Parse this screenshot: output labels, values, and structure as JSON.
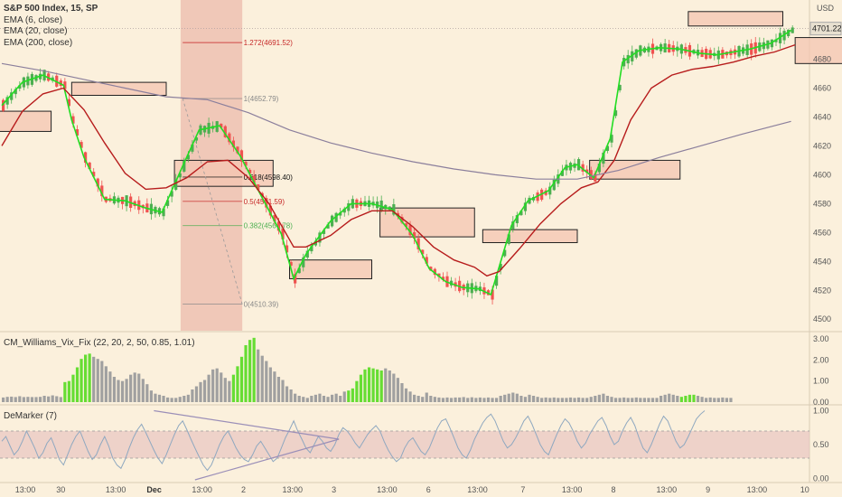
{
  "header": {
    "symbol": "S&P 500 Index, 15, SP",
    "indicators": [
      "EMA (6, close)",
      "EMA (20, close)",
      "EMA (200, close)"
    ],
    "currency": "USD"
  },
  "colors": {
    "background": "#fbf0dc",
    "up_candle": "#4caf50",
    "down_candle": "#ef5350",
    "ema6": "#22dd22",
    "ema20": "#b71c1c",
    "ema200": "#8b7f9c",
    "zone_fill": "#f4c6b2",
    "vix_green": "#66dd33",
    "vix_gray": "#a0a0a0",
    "demarker_line": "#8fa8c0",
    "demarker_band": "#e8c4c0",
    "divergence": "#9b8fb8",
    "fib_red": "#c62828",
    "fib_gray": "#888888",
    "fib_green": "#4caf50"
  },
  "chart_data": [
    {
      "type": "candlestick",
      "title": "S&P 500 Index, 15, SP",
      "ylabel": "USD",
      "ylim": [
        4492,
        4716
      ],
      "yticks": [
        4500,
        4520,
        4540,
        4560,
        4580,
        4600,
        4620,
        4640,
        4660,
        4680
      ],
      "last_price": "4701.22",
      "x_ticks": [
        "13:00",
        "30",
        "13:00",
        "Dec",
        "13:00",
        "2",
        "13:00",
        "3",
        "13:00",
        "6",
        "13:00",
        "7",
        "13:00",
        "8",
        "13:00",
        "9",
        "13:00",
        "10"
      ],
      "fib_levels": [
        {
          "label": "1.272(4691.52)",
          "value": 4691.52,
          "color": "red"
        },
        {
          "label": "1(4652.79)",
          "value": 4652.79,
          "color": "gray"
        },
        {
          "label": "0.618(4598.40)",
          "value": 4598.4,
          "color": "black"
        },
        {
          "label": "0.5(4581.59)",
          "value": 4581.59,
          "color": "red"
        },
        {
          "label": "0.382(4564.78)",
          "value": 4564.78,
          "color": "green"
        },
        {
          "label": "0(4510.39)",
          "value": 4510.39,
          "color": "gray"
        }
      ],
      "series": [
        {
          "name": "EMA (6, close)",
          "points": [
            [
              0,
              4648
            ],
            [
              5,
              4664
            ],
            [
              10,
              4669
            ],
            [
              15,
              4662
            ],
            [
              17,
              4638
            ],
            [
              20,
              4612
            ],
            [
              25,
              4583
            ],
            [
              30,
              4582
            ],
            [
              35,
              4577
            ],
            [
              39,
              4574
            ],
            [
              44,
              4606
            ],
            [
              48,
              4631
            ],
            [
              53,
              4634
            ],
            [
              58,
              4613
            ],
            [
              63,
              4586
            ],
            [
              68,
              4559
            ],
            [
              71,
              4528
            ],
            [
              74,
              4545
            ],
            [
              80,
              4568
            ],
            [
              85,
              4580
            ],
            [
              90,
              4580
            ],
            [
              95,
              4576
            ],
            [
              100,
              4558
            ],
            [
              104,
              4535
            ],
            [
              108,
              4526
            ],
            [
              112,
              4522
            ],
            [
              116,
              4521
            ],
            [
              119,
              4517
            ],
            [
              124,
              4565
            ],
            [
              128,
              4582
            ],
            [
              133,
              4589
            ],
            [
              137,
              4605
            ],
            [
              140,
              4607
            ],
            [
              144,
              4598
            ],
            [
              148,
              4625
            ],
            [
              151,
              4678
            ],
            [
              155,
              4686
            ],
            [
              160,
              4688
            ],
            [
              165,
              4687
            ],
            [
              170,
              4684
            ],
            [
              174,
              4683
            ],
            [
              178,
              4685
            ],
            [
              182,
              4687
            ],
            [
              187,
              4691
            ],
            [
              192,
              4700
            ]
          ]
        },
        {
          "name": "EMA (20, close)",
          "points": [
            [
              0,
              4620
            ],
            [
              5,
              4644
            ],
            [
              10,
              4656
            ],
            [
              15,
              4660
            ],
            [
              20,
              4645
            ],
            [
              25,
              4622
            ],
            [
              30,
              4601
            ],
            [
              35,
              4590
            ],
            [
              40,
              4591
            ],
            [
              45,
              4598
            ],
            [
              50,
              4609
            ],
            [
              55,
              4610
            ],
            [
              60,
              4598
            ],
            [
              65,
              4580
            ],
            [
              68,
              4565
            ],
            [
              71,
              4550
            ],
            [
              74,
              4550
            ],
            [
              80,
              4558
            ],
            [
              85,
              4569
            ],
            [
              90,
              4575
            ],
            [
              95,
              4575
            ],
            [
              100,
              4564
            ],
            [
              105,
              4550
            ],
            [
              110,
              4541
            ],
            [
              115,
              4536
            ],
            [
              118,
              4530
            ],
            [
              121,
              4533
            ],
            [
              126,
              4549
            ],
            [
              131,
              4566
            ],
            [
              136,
              4580
            ],
            [
              141,
              4591
            ],
            [
              145,
              4595
            ],
            [
              149,
              4610
            ],
            [
              153,
              4638
            ],
            [
              158,
              4660
            ],
            [
              163,
              4669
            ],
            [
              168,
              4673
            ],
            [
              173,
              4675
            ],
            [
              178,
              4678
            ],
            [
              183,
              4682
            ],
            [
              188,
              4685
            ],
            [
              193,
              4690
            ]
          ]
        },
        {
          "name": "EMA (200, close)",
          "points": [
            [
              0,
              4677
            ],
            [
              10,
              4672
            ],
            [
              20,
              4666
            ],
            [
              30,
              4660
            ],
            [
              40,
              4654
            ],
            [
              50,
              4652
            ],
            [
              60,
              4643
            ],
            [
              70,
              4631
            ],
            [
              80,
              4622
            ],
            [
              90,
              4615
            ],
            [
              100,
              4609
            ],
            [
              110,
              4604
            ],
            [
              120,
              4600
            ],
            [
              130,
              4597
            ],
            [
              140,
              4597
            ],
            [
              150,
              4603
            ],
            [
              160,
              4612
            ],
            [
              170,
              4620
            ],
            [
              180,
              4628
            ],
            [
              192,
              4637
            ]
          ]
        }
      ],
      "zones": [
        {
          "x0": -1,
          "x1": 12,
          "y_top": 4644,
          "y_bottom": 4630
        },
        {
          "x0": 17,
          "x1": 40,
          "y_top": 4664,
          "y_bottom": 4655
        },
        {
          "x0": 42,
          "x1": 66,
          "y_top": 4610,
          "y_bottom": 4592
        },
        {
          "x0": 70,
          "x1": 90,
          "y_top": 4541,
          "y_bottom": 4528
        },
        {
          "x0": 92,
          "x1": 115,
          "y_top": 4577,
          "y_bottom": 4557
        },
        {
          "x0": 117,
          "x1": 140,
          "y_top": 4562,
          "y_bottom": 4553
        },
        {
          "x0": 143,
          "x1": 165,
          "y_top": 4610,
          "y_bottom": 4597
        },
        {
          "x0": 167,
          "x1": 190,
          "y_top": 4713,
          "y_bottom": 4703
        },
        {
          "x0": 193,
          "x1": 216,
          "y_top": 4695,
          "y_bottom": 4677
        }
      ]
    },
    {
      "type": "bar",
      "title": "CM_Williams_Vix_Fix (22, 20, 2, 50, 0.85, 1.01)",
      "ylim": [
        0,
        3
      ],
      "yticks": [
        0,
        1,
        2,
        3
      ],
      "values": [
        0.22,
        0.25,
        0.26,
        0.24,
        0.28,
        0.24,
        0.25,
        0.24,
        0.24,
        0.25,
        0.3,
        0.27,
        0.32,
        0.28,
        0.24,
        0.95,
        1.0,
        1.3,
        1.65,
        2.05,
        2.25,
        2.3,
        2.15,
        2.05,
        1.95,
        1.7,
        1.45,
        1.2,
        1.05,
        1.0,
        1.1,
        1.3,
        1.4,
        1.35,
        1.1,
        0.85,
        0.55,
        0.4,
        0.35,
        0.3,
        0.22,
        0.2,
        0.2,
        0.25,
        0.3,
        0.35,
        0.6,
        0.75,
        0.95,
        1.05,
        1.3,
        1.55,
        1.6,
        1.4,
        1.15,
        1.0,
        1.3,
        1.7,
        2.15,
        2.7,
        2.95,
        3.05,
        2.5,
        2.2,
        1.95,
        1.65,
        1.45,
        1.2,
        1.05,
        0.75,
        0.6,
        0.4,
        0.3,
        0.25,
        0.2,
        0.3,
        0.35,
        0.4,
        0.3,
        0.25,
        0.35,
        0.4,
        0.3,
        0.5,
        0.55,
        0.65,
        1.0,
        1.3,
        1.55,
        1.65,
        1.6,
        1.55,
        1.5,
        1.6,
        1.5,
        1.35,
        1.15,
        0.9,
        0.65,
        0.5,
        0.35,
        0.3,
        0.25,
        0.45,
        0.3,
        0.25,
        0.22,
        0.2,
        0.22,
        0.2,
        0.22,
        0.22,
        0.24,
        0.2,
        0.23,
        0.2,
        0.22,
        0.2,
        0.22,
        0.2,
        0.2,
        0.3,
        0.35,
        0.4,
        0.45,
        0.4,
        0.3,
        0.25,
        0.35,
        0.3,
        0.25,
        0.2,
        0.22,
        0.2,
        0.22,
        0.2,
        0.2,
        0.2,
        0.22,
        0.2,
        0.22,
        0.2,
        0.2,
        0.25,
        0.3,
        0.35,
        0.4,
        0.3,
        0.25,
        0.2,
        0.2,
        0.22,
        0.2,
        0.2,
        0.22,
        0.2,
        0.2,
        0.2,
        0.2,
        0.2,
        0.3,
        0.35,
        0.4,
        0.35,
        0.3,
        0.25,
        0.3,
        0.35,
        0.35,
        0.3,
        0.25,
        0.2,
        0.22,
        0.2,
        0.2,
        0.22,
        0.2,
        0.2
      ],
      "green_ranges": [
        [
          15,
          21
        ],
        [
          56,
          61
        ],
        [
          84,
          92
        ],
        [
          165,
          168
        ]
      ]
    },
    {
      "type": "line",
      "title": "DeMarker (7)",
      "ylim": [
        -0.02,
        1.02
      ],
      "yticks": [
        0,
        0.5,
        1
      ],
      "band": [
        0.3,
        0.7
      ],
      "values": [
        0.55,
        0.62,
        0.48,
        0.35,
        0.42,
        0.55,
        0.7,
        0.58,
        0.45,
        0.3,
        0.38,
        0.52,
        0.6,
        0.45,
        0.28,
        0.2,
        0.35,
        0.5,
        0.62,
        0.7,
        0.55,
        0.4,
        0.28,
        0.35,
        0.5,
        0.62,
        0.48,
        0.3,
        0.2,
        0.15,
        0.28,
        0.45,
        0.6,
        0.72,
        0.8,
        0.68,
        0.55,
        0.42,
        0.3,
        0.22,
        0.35,
        0.5,
        0.65,
        0.78,
        0.85,
        0.72,
        0.58,
        0.45,
        0.32,
        0.2,
        0.12,
        0.2,
        0.35,
        0.5,
        0.62,
        0.7,
        0.58,
        0.45,
        0.35,
        0.28,
        0.25,
        0.35,
        0.48,
        0.55,
        0.45,
        0.35,
        0.25,
        0.3,
        0.45,
        0.6,
        0.72,
        0.85,
        0.7,
        0.58,
        0.45,
        0.38,
        0.5,
        0.62,
        0.55,
        0.45,
        0.4,
        0.5,
        0.65,
        0.75,
        0.7,
        0.62,
        0.52,
        0.45,
        0.55,
        0.65,
        0.72,
        0.78,
        0.7,
        0.55,
        0.42,
        0.32,
        0.25,
        0.3,
        0.45,
        0.55,
        0.6,
        0.5,
        0.4,
        0.35,
        0.45,
        0.6,
        0.75,
        0.85,
        0.88,
        0.75,
        0.6,
        0.45,
        0.35,
        0.3,
        0.42,
        0.58,
        0.7,
        0.82,
        0.9,
        0.95,
        0.85,
        0.7,
        0.55,
        0.45,
        0.5,
        0.6,
        0.72,
        0.85,
        0.92,
        0.8,
        0.65,
        0.5,
        0.4,
        0.35,
        0.5,
        0.65,
        0.78,
        0.88,
        0.82,
        0.7,
        0.55,
        0.45,
        0.52,
        0.65,
        0.75,
        0.85,
        0.9,
        0.78,
        0.62,
        0.5,
        0.55,
        0.7,
        0.82,
        0.9,
        0.78,
        0.6,
        0.45,
        0.38,
        0.5,
        0.65,
        0.8,
        0.92,
        0.85,
        0.7,
        0.55,
        0.45,
        0.5,
        0.62,
        0.75,
        0.88,
        0.95,
        1.0
      ],
      "divergence_lines": [
        {
          "from": [
            37,
            1.0
          ],
          "to": [
            82,
            0.58
          ]
        },
        {
          "from": [
            47,
            -0.02
          ],
          "to": [
            82,
            0.58
          ]
        }
      ]
    }
  ]
}
